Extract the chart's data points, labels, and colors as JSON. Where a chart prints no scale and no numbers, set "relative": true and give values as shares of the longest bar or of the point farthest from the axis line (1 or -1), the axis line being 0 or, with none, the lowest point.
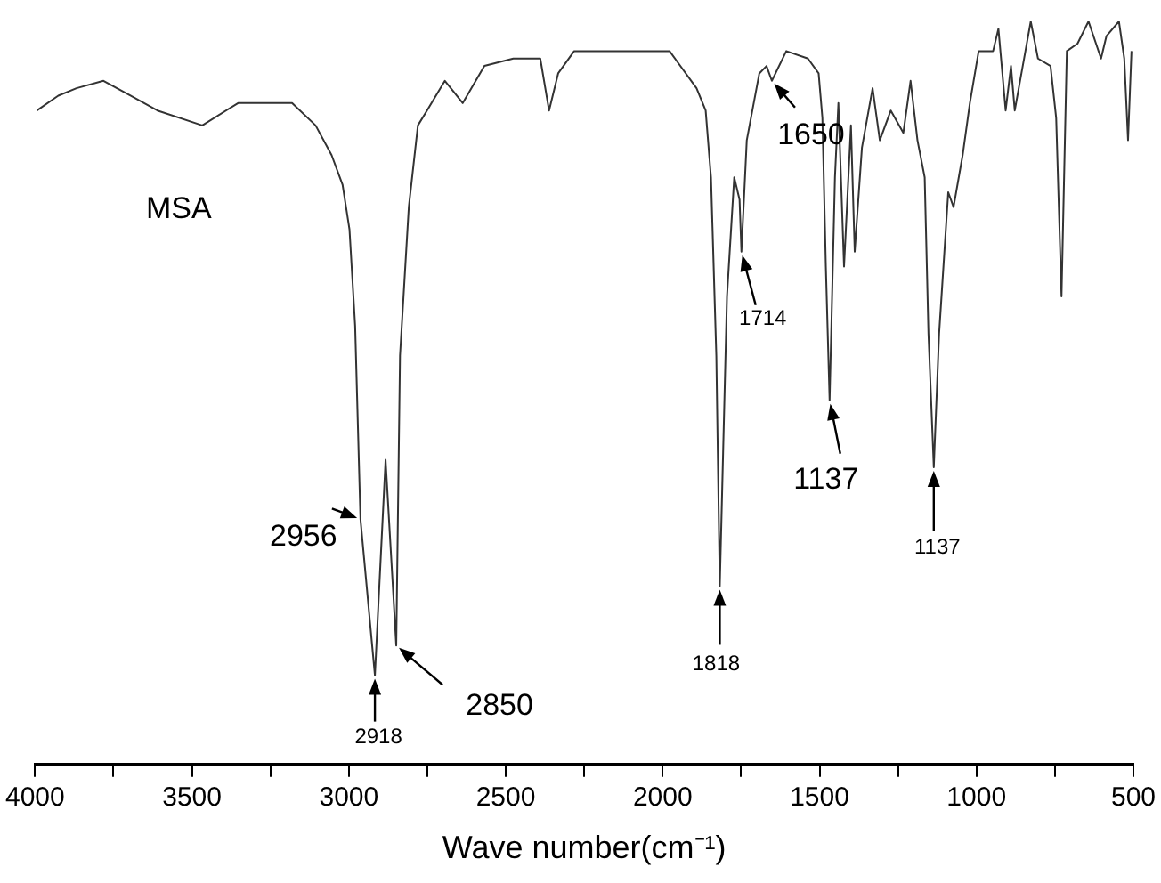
{
  "chart_data": {
    "type": "line",
    "relative": true,
    "xlabel": "Wave number(cm⁻¹)",
    "xlim": [
      4000,
      500
    ],
    "xticks": [
      4000,
      {
        "value": 3750,
        "label": null
      },
      3500,
      {
        "value": 3250,
        "label": null
      },
      3000,
      {
        "value": 2750,
        "label": null
      },
      2500,
      {
        "value": 2250,
        "label": null
      },
      2000,
      {
        "value": 1750,
        "label": null
      },
      1500,
      {
        "value": 1250,
        "label": null
      },
      1000,
      {
        "value": 750,
        "label": null
      },
      500
    ],
    "grid": false,
    "legend": false,
    "tick_labels": "x",
    "marker": "none",
    "line_style": "solid",
    "series": [
      {
        "name": "MSA",
        "color": "#333333",
        "x": [
          3994,
          3926,
          3868,
          3782,
          3696,
          3610,
          3467,
          3353,
          3181,
          3106,
          3055,
          3020,
          2998,
          2980,
          2963,
          2917,
          2883,
          2849,
          2837,
          2809,
          2780,
          2751,
          2694,
          2637,
          2568,
          2476,
          2390,
          2362,
          2333,
          2282,
          2219,
          1978,
          1892,
          1863,
          1846,
          1829,
          1818,
          1795,
          1772,
          1755,
          1749,
          1732,
          1692,
          1669,
          1652,
          1606,
          1537,
          1503,
          1491,
          1480,
          1468,
          1451,
          1440,
          1422,
          1400,
          1388,
          1365,
          1331,
          1308,
          1273,
          1233,
          1210,
          1188,
          1165,
          1153,
          1136,
          1119,
          1090,
          1073,
          1044,
          1021,
          993,
          947,
          930,
          907,
          890,
          878,
          844,
          827,
          804,
          764,
          746,
          729,
          712,
          678,
          643,
          603,
          586,
          546,
          529,
          517,
          506
        ],
        "values": [
          0.88,
          0.9,
          0.91,
          0.92,
          0.9,
          0.88,
          0.86,
          0.89,
          0.89,
          0.86,
          0.82,
          0.78,
          0.72,
          0.59,
          0.33,
          0.12,
          0.41,
          0.16,
          0.55,
          0.75,
          0.86,
          0.88,
          0.92,
          0.89,
          0.94,
          0.95,
          0.95,
          0.88,
          0.93,
          0.96,
          0.96,
          0.96,
          0.91,
          0.88,
          0.79,
          0.55,
          0.24,
          0.63,
          0.79,
          0.76,
          0.69,
          0.84,
          0.93,
          0.94,
          0.92,
          0.96,
          0.95,
          0.93,
          0.87,
          0.67,
          0.49,
          0.79,
          0.89,
          0.67,
          0.86,
          0.69,
          0.83,
          0.91,
          0.84,
          0.88,
          0.85,
          0.92,
          0.84,
          0.79,
          0.58,
          0.4,
          0.58,
          0.77,
          0.75,
          0.82,
          0.89,
          0.96,
          0.96,
          0.99,
          0.88,
          0.94,
          0.88,
          0.96,
          1,
          0.95,
          0.94,
          0.87,
          0.63,
          0.96,
          0.97,
          1,
          0.95,
          0.98,
          1,
          0.95,
          0.84,
          0.96
        ]
      }
    ],
    "annotations": [
      {
        "text": "2956",
        "x": 2963,
        "y": 0.33
      },
      {
        "text": "2918",
        "x": 2917,
        "y": 0.12
      },
      {
        "text": "2850",
        "x": 2849,
        "y": 0.16
      },
      {
        "text": "1818",
        "x": 1818,
        "y": 0.24
      },
      {
        "text": "1714",
        "x": 1749,
        "y": 0.69
      },
      {
        "text": "1650",
        "x": 1652,
        "y": 0.92
      },
      {
        "text": "1137",
        "x": 1468,
        "y": 0.49
      },
      {
        "text": "1137",
        "x": 1136,
        "y": 0.4
      }
    ]
  }
}
